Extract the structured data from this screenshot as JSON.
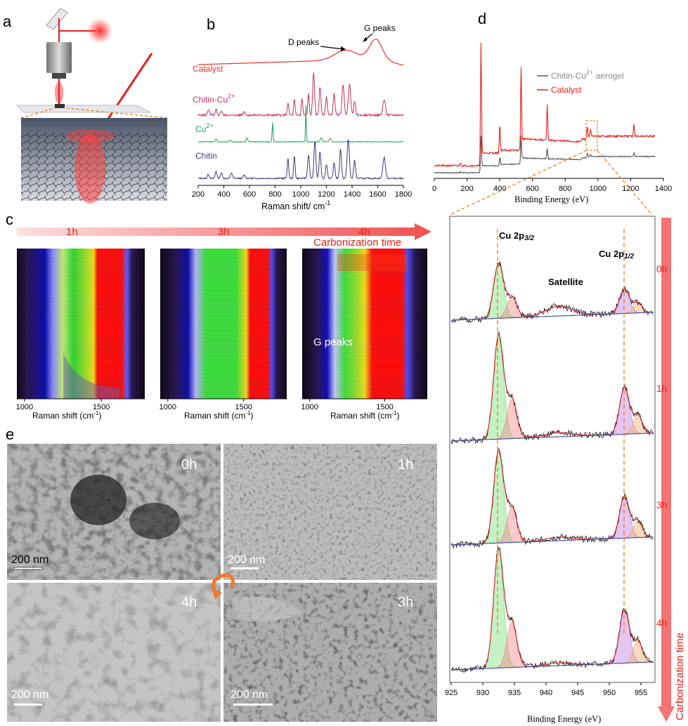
{
  "panels": {
    "a": "a",
    "b": "b",
    "c": "c",
    "d": "d",
    "e": "e"
  },
  "panel_b": {
    "annot_d": "D peaks",
    "annot_g": "G peaks",
    "traces": {
      "catalyst": "Catalyst",
      "chitin_cu": "Chitin-Cu",
      "chitin_cu_sup": "2+",
      "cu": "Cu",
      "cu_sup": "2+",
      "chitin": "Chitin"
    },
    "xlabel": "Raman shift/ cm",
    "xlabel_sup": "-1",
    "ticks": [
      "200",
      "400",
      "600",
      "800",
      "1000",
      "1200",
      "1400",
      "1600",
      "1800"
    ],
    "colors": {
      "catalyst": "#e8302a",
      "chitin_cu": "#c2335a",
      "cu": "#1aa05a",
      "chitin": "#3c3c78"
    }
  },
  "panel_c": {
    "times": [
      "1h",
      "3h",
      "4h"
    ],
    "arrow_label": "Carbonization time",
    "g_peaks": "G peaks",
    "xlabel": "Raman shift (cm",
    "xlabel_sup": "-1",
    "xlabel_end": ")",
    "ticks": [
      "1000",
      "1500"
    ]
  },
  "panel_d": {
    "legend": {
      "aerogel": "Chitin-Cu",
      "aerogel_sup": "2+",
      "aerogel_tail": " aerogel",
      "catalyst": "Catalyst"
    },
    "xlabel": "Binding Energy (eV)",
    "ticks": [
      "0",
      "200",
      "400",
      "600",
      "800",
      "1000",
      "1200",
      "1400"
    ],
    "colors": {
      "aerogel": "#555555",
      "catalyst": "#e8201a"
    }
  },
  "panel_xps": {
    "cu2p32": "Cu 2p",
    "cu2p32_sub": "3/2",
    "cu2p12": "Cu 2p",
    "cu2p12_sub": "1/2",
    "satellite": "Satellite",
    "times": [
      "0h",
      "1h",
      "3h",
      "4h"
    ],
    "arrow_label": "Carbonization time",
    "xlabel": "Binding Energy (eV)",
    "ticks": [
      "925",
      "930",
      "935",
      "940",
      "945",
      "950",
      "955"
    ]
  },
  "panel_e": {
    "times": [
      "0h",
      "1h",
      "4h",
      "3h"
    ],
    "scale": "200 nm"
  }
}
